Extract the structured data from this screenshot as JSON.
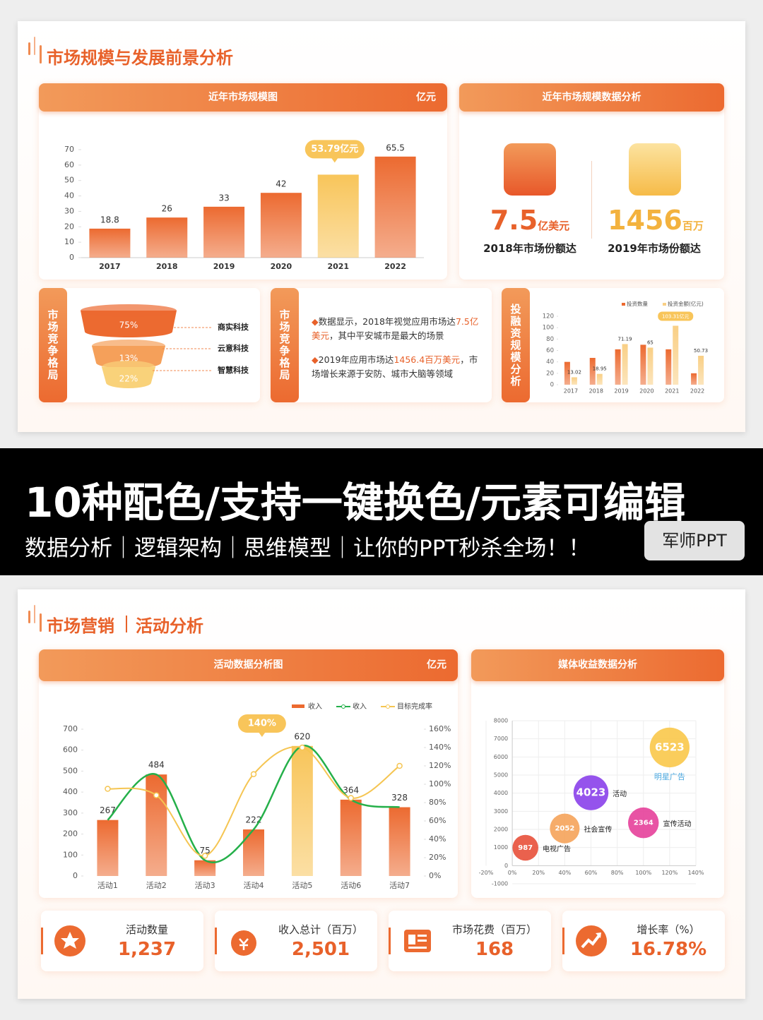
{
  "slide1": {
    "title": "市场规模与发展前景分析",
    "stats_panel": {
      "title": "近年市场规模数据分析",
      "stats": [
        {
          "value": "7.5",
          "unit": "亿美元",
          "caption": "2018年市场份额达"
        },
        {
          "value": "1456",
          "unit": "百万",
          "caption": "2019年市场份额达"
        }
      ]
    },
    "text_panel": {
      "title": "市场竞争格局",
      "bullets": [
        [
          "数据显示，2018年视觉应用市场达",
          "7.5亿美元",
          "，其中平安城市是最大的场景"
        ],
        [
          "2019年应用市场达",
          "1456.4百万美元",
          "，市场增长来源于安防、城市大脑等领域"
        ]
      ]
    }
  },
  "chart_data": [
    {
      "type": "bar",
      "title": "近年市场规模图",
      "unit": "亿元",
      "categories": [
        "2017",
        "2018",
        "2019",
        "2020",
        "2021",
        "2022"
      ],
      "values": [
        18.8,
        26,
        33,
        42,
        53.79,
        65.5
      ],
      "value_labels": [
        "18.8",
        "26",
        "33",
        "42",
        "53.79亿元",
        "65.5"
      ],
      "colors": [
        "#ec6a30",
        "#ec6a30",
        "#ec6a30",
        "#ec6a30",
        "#f8c55a",
        "#ec6a30"
      ],
      "ylim": [
        0,
        70
      ],
      "yticks": [
        0,
        10,
        20,
        30,
        40,
        50,
        60,
        70
      ]
    },
    {
      "type": "funnel",
      "title": "市场竞争格局",
      "categories": [
        "商实科技",
        "云意科技",
        "智慧科技"
      ],
      "values": [
        75,
        13,
        22
      ],
      "value_labels": [
        "75%",
        "13%",
        "22%"
      ],
      "colors": [
        "#ec6a30",
        "#f5a05a",
        "#f9d27a"
      ]
    },
    {
      "type": "grouped-bar",
      "title": "投融资规模分析",
      "categories": [
        "2017",
        "2018",
        "2019",
        "2020",
        "2021",
        "2022"
      ],
      "series": [
        {
          "name": "投资数量",
          "color": "#ec6a30",
          "values": [
            40,
            47,
            62,
            70,
            62,
            20
          ]
        },
        {
          "name": "投资金额(亿元)",
          "color": "#f9cf85",
          "values": [
            13.02,
            18.95,
            71.19,
            65,
            103.31,
            50.73
          ],
          "value_labels": [
            "13.02",
            "18.95",
            "71.19",
            "65",
            "103.31亿元",
            "50.73"
          ]
        }
      ],
      "ylim": [
        0,
        120
      ],
      "yticks": [
        0,
        20,
        40,
        60,
        80,
        100,
        120
      ]
    },
    {
      "type": "combo",
      "title": "活动数据分析图",
      "unit": "亿元",
      "categories": [
        "活动1",
        "活动2",
        "活动3",
        "活动4",
        "活动5",
        "活动6",
        "活动7"
      ],
      "series": [
        {
          "name": "收入",
          "type": "bar",
          "color": "#ec6a30",
          "colors": [
            "#ec6a30",
            "#ec6a30",
            "#ec6a30",
            "#ec6a30",
            "#f8c55a",
            "#ec6a30",
            "#ec6a30"
          ],
          "values": [
            267,
            484,
            75,
            222,
            620,
            364,
            328
          ]
        },
        {
          "name": "收入",
          "type": "line",
          "color": "#25b04a",
          "values": [
            267,
            484,
            75,
            222,
            620,
            364,
            328
          ]
        },
        {
          "name": "目标完成率",
          "type": "line",
          "axis": "y2",
          "color": "#f5c552",
          "values": [
            95,
            88,
            22,
            111,
            140,
            85,
            120
          ],
          "value_labels": [
            null,
            null,
            null,
            null,
            "140%",
            null,
            null
          ]
        }
      ],
      "ylim": [
        0,
        700
      ],
      "yticks": [
        0,
        100,
        200,
        300,
        400,
        500,
        600,
        700
      ],
      "y2lim": [
        0,
        160
      ],
      "y2ticks": [
        {
          "value": 0,
          "label": "0%"
        },
        {
          "value": 20,
          "label": "20%"
        },
        {
          "value": 40,
          "label": "40%"
        },
        {
          "value": 60,
          "label": "60%"
        },
        {
          "value": 80,
          "label": "80%"
        },
        {
          "value": 100,
          "label": "100%"
        },
        {
          "value": 120,
          "label": "120%"
        },
        {
          "value": 140,
          "label": "140%"
        },
        {
          "value": 160,
          "label": "160%"
        }
      ]
    },
    {
      "type": "bubble",
      "title": "媒体收益数据分析",
      "labels": [
        "电视广告",
        "社会宣传",
        "活动",
        "宣传活动",
        "明星广告"
      ],
      "x": [
        10,
        40,
        60,
        100,
        120
      ],
      "values": [
        987,
        2052,
        4023,
        2364,
        6523
      ],
      "colors": [
        "#e8503a",
        "#f5a35a",
        "#8a40ea",
        "#e6409a",
        "#f9c84a"
      ],
      "xlim": [
        -20,
        140
      ],
      "xticks": [
        {
          "value": -20,
          "label": "-20%"
        },
        {
          "value": 0,
          "label": "0%"
        },
        {
          "value": 20,
          "label": "20%"
        },
        {
          "value": 40,
          "label": "40%"
        },
        {
          "value": 60,
          "label": "60%"
        },
        {
          "value": 80,
          "label": "80%"
        },
        {
          "value": 100,
          "label": "100%"
        },
        {
          "value": 120,
          "label": "120%"
        },
        {
          "value": 140,
          "label": "140%"
        }
      ],
      "ylim": [
        -1000,
        8000
      ],
      "yticks": [
        -1000,
        0,
        1000,
        2000,
        3000,
        4000,
        5000,
        6000,
        7000,
        8000
      ],
      "grid": true
    }
  ],
  "banner": {
    "headline": "10种配色/支持一键换色/元素可编辑",
    "tagline": "数据分析｜逻辑架构｜思维模型｜让你的PPT秒杀全场！！",
    "badge": "军师PPT"
  },
  "slide2": {
    "title": "市场营销",
    "subtitle": "活动分析",
    "kpis": [
      {
        "label": "活动数量",
        "value": "1,237"
      },
      {
        "label": "收入总计（百万）",
        "value": "2,501"
      },
      {
        "label": "市场花费（百万）",
        "value": "168"
      },
      {
        "label": "增长率（%）",
        "value": "16.78%"
      }
    ]
  }
}
